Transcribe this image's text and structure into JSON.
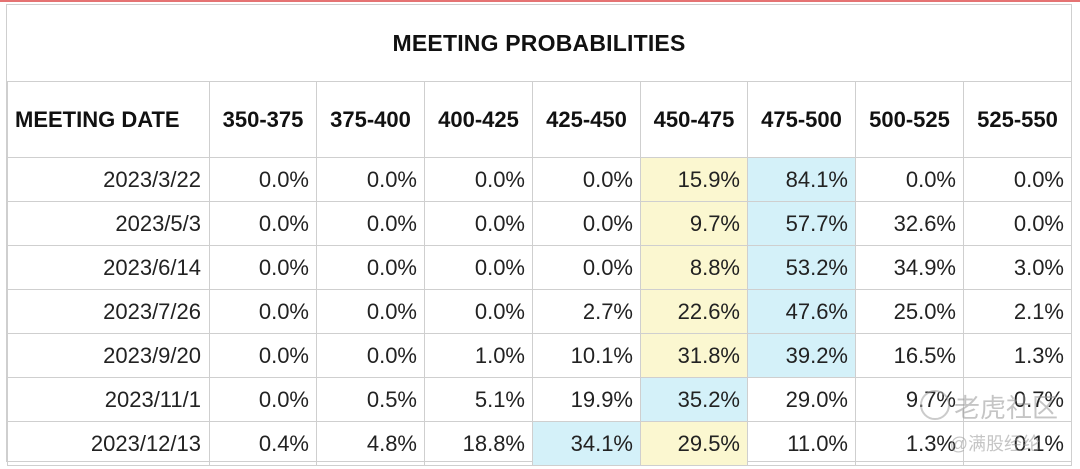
{
  "title": "MEETING PROBABILITIES",
  "headers": [
    "MEETING DATE",
    "350-375",
    "375-400",
    "400-425",
    "425-450",
    "450-475",
    "475-500",
    "500-525",
    "525-550"
  ],
  "rows": [
    {
      "date": "2023/3/22",
      "cells": [
        "0.0%",
        "0.0%",
        "0.0%",
        "0.0%",
        "15.9%",
        "84.1%",
        "0.0%",
        "0.0%"
      ]
    },
    {
      "date": "2023/5/3",
      "cells": [
        "0.0%",
        "0.0%",
        "0.0%",
        "0.0%",
        "9.7%",
        "57.7%",
        "32.6%",
        "0.0%"
      ]
    },
    {
      "date": "2023/6/14",
      "cells": [
        "0.0%",
        "0.0%",
        "0.0%",
        "0.0%",
        "8.8%",
        "53.2%",
        "34.9%",
        "3.0%"
      ]
    },
    {
      "date": "2023/7/26",
      "cells": [
        "0.0%",
        "0.0%",
        "0.0%",
        "2.7%",
        "22.6%",
        "47.6%",
        "25.0%",
        "2.1%"
      ]
    },
    {
      "date": "2023/9/20",
      "cells": [
        "0.0%",
        "0.0%",
        "1.0%",
        "10.1%",
        "31.8%",
        "39.2%",
        "16.5%",
        "1.3%"
      ]
    },
    {
      "date": "2023/11/1",
      "cells": [
        "0.0%",
        "0.5%",
        "5.1%",
        "19.9%",
        "35.2%",
        "29.0%",
        "9.7%",
        "0.7%"
      ]
    },
    {
      "date": "2023/12/13",
      "cells": [
        "0.4%",
        "4.8%",
        "18.8%",
        "34.1%",
        "29.5%",
        "11.0%",
        "1.3%",
        "0.1%"
      ]
    }
  ],
  "highlights": [
    [
      "",
      "",
      "",
      "",
      "yellow",
      "blue",
      "",
      ""
    ],
    [
      "",
      "",
      "",
      "",
      "yellow",
      "blue",
      "",
      ""
    ],
    [
      "",
      "",
      "",
      "",
      "yellow",
      "blue",
      "",
      ""
    ],
    [
      "",
      "",
      "",
      "",
      "yellow",
      "blue",
      "",
      ""
    ],
    [
      "",
      "",
      "",
      "",
      "yellow",
      "blue",
      "",
      ""
    ],
    [
      "",
      "",
      "",
      "",
      "blue",
      "",
      "",
      ""
    ],
    [
      "",
      "",
      "",
      "blue",
      "yellow",
      "",
      "",
      ""
    ]
  ],
  "colors": {
    "yellow": "#fbf7d0",
    "blue": "#d4f1f9",
    "border": "#cfcfcf",
    "top_line": "#e57373"
  },
  "watermark": {
    "line1": "老虎社区",
    "line2": "@满股经纶"
  }
}
